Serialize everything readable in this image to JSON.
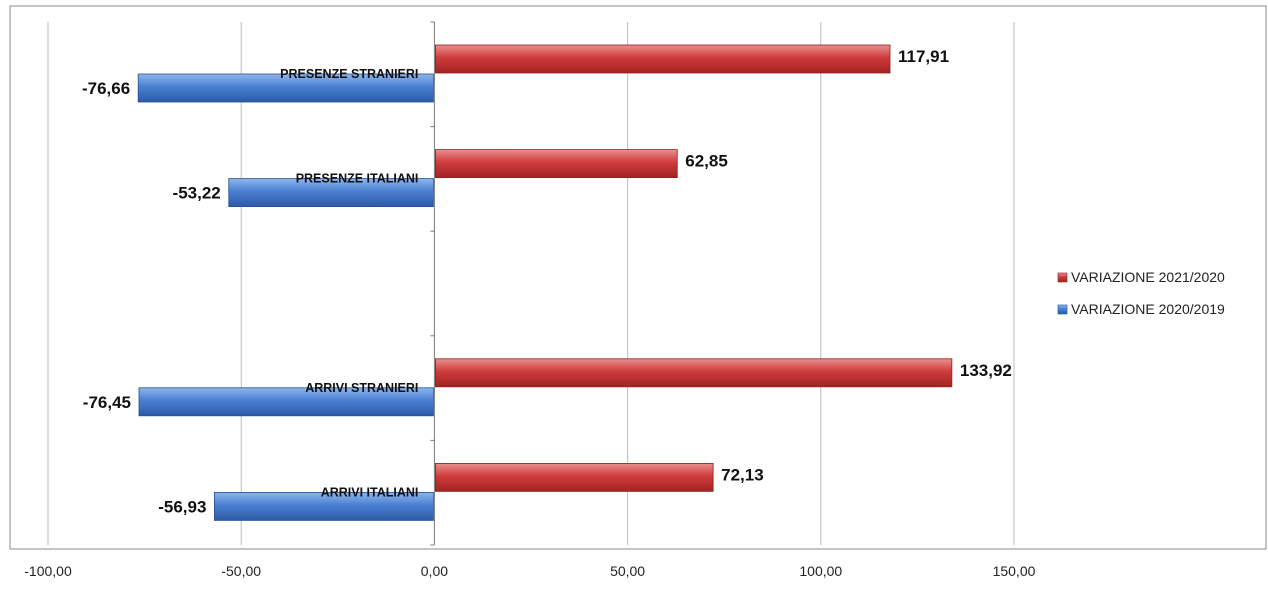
{
  "chart_data": {
    "type": "bar",
    "orientation": "horizontal",
    "categories": [
      "ARRIVI   ITALIANI",
      "ARRIVI STRANIERI",
      "",
      "PRESENZE ITALIANI",
      "PRESENZE STRANIERI"
    ],
    "series": [
      {
        "name": "VARIAZIONE 2020/2019",
        "color": "#3f74c9",
        "values": [
          -56.93,
          -76.45,
          null,
          -53.22,
          -76.66
        ],
        "labels": [
          "-56,93",
          "-76,45",
          "",
          "-53,22",
          "-76,66"
        ]
      },
      {
        "name": "VARIAZIONE 2021/2020",
        "color": "#c93434",
        "values": [
          72.13,
          133.92,
          null,
          62.85,
          117.91
        ],
        "labels": [
          "72,13",
          "133,92",
          "",
          "62,85",
          "117,91"
        ]
      }
    ],
    "xlim": [
      -100,
      150
    ],
    "xticks": [
      -100,
      -50,
      0,
      50,
      100,
      150
    ],
    "xtick_labels": [
      "-100,00",
      "-50,00",
      "0,00",
      "50,00",
      "100,00",
      "150,00"
    ],
    "grid": "vertical",
    "legend": "right"
  }
}
